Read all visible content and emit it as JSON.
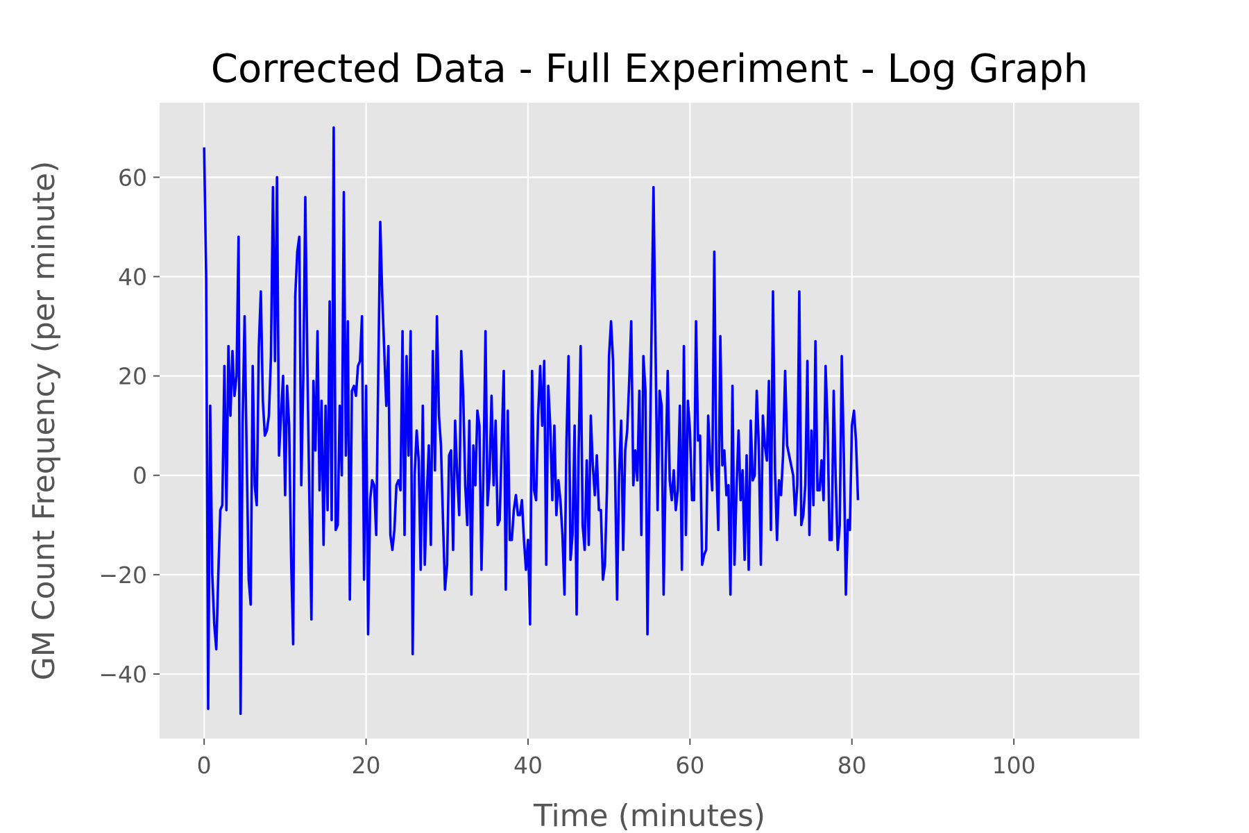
{
  "chart_data": {
    "type": "line",
    "title": "Corrected Data - Full Experiment - Log Graph",
    "xlabel": "Time (minutes)",
    "ylabel": "GM Count Frequency (per minute)",
    "xlim": [
      -5.5,
      115.5
    ],
    "ylim": [
      -53,
      75
    ],
    "xticks": [
      0,
      20,
      40,
      60,
      80,
      100
    ],
    "yticks": [
      -40,
      -20,
      0,
      20,
      40,
      60
    ],
    "xtick_labels": [
      "0",
      "20",
      "40",
      "60",
      "80",
      "100"
    ],
    "ytick_labels": [
      "−40",
      "−20",
      "0",
      "20",
      "40",
      "60"
    ],
    "grid": true,
    "background_color": "#e5e5e5",
    "grid_color": "#ffffff",
    "series": [
      {
        "color": "#0000ff",
        "x_start": 0,
        "x_step": 0.25,
        "values": [
          66,
          40,
          -47,
          14,
          -20,
          -30,
          -35,
          -20,
          -7,
          -6,
          22,
          -7,
          26,
          12,
          25,
          16,
          20,
          48,
          -48,
          10,
          32,
          5,
          -21,
          -26,
          22,
          -2,
          -6,
          26,
          37,
          15,
          8,
          9,
          12,
          24,
          58,
          23,
          60,
          4,
          12,
          20,
          -4,
          18,
          10,
          -17,
          -34,
          36,
          45,
          48,
          -2,
          20,
          56,
          22,
          -5,
          -29,
          19,
          5,
          29,
          -3,
          15,
          -14,
          14,
          -7,
          35,
          -9,
          70,
          -11,
          -10,
          14,
          0,
          57,
          4,
          31,
          -25,
          17,
          18,
          16,
          22,
          23,
          32,
          -21,
          18,
          -32,
          -5,
          -1,
          -2,
          -12,
          20,
          51,
          36,
          25,
          14,
          26,
          -12,
          -15,
          -11,
          -2,
          -1,
          -3,
          29,
          -12,
          24,
          4,
          29,
          -36,
          0,
          9,
          3,
          -19,
          14,
          -18,
          -4,
          6,
          -14,
          25,
          1,
          32,
          12,
          6,
          -9,
          -23,
          -18,
          4,
          5,
          -15,
          11,
          0,
          -8,
          25,
          16,
          -2,
          -10,
          11,
          -24,
          6,
          -2,
          13,
          10,
          -19,
          1,
          29,
          -6,
          0,
          16,
          -2,
          11,
          -10,
          -9,
          6,
          21,
          -23,
          13,
          -13,
          -13,
          -7,
          -4,
          -8,
          -8,
          -5,
          -13,
          -19,
          -13,
          -30,
          21,
          -3,
          -5,
          12,
          22,
          10,
          23,
          -18,
          18,
          10,
          -5,
          10,
          -8,
          -1,
          -5,
          -12,
          -24,
          7,
          24,
          -17,
          -12,
          10,
          -28,
          5,
          26,
          -10,
          -15,
          3,
          -14,
          12,
          2,
          -4,
          4,
          -7,
          -7,
          -21,
          -18,
          -3,
          24,
          31,
          23,
          1,
          -25,
          0,
          11,
          -15,
          5,
          9,
          19,
          31,
          -2,
          5,
          -1,
          17,
          -12,
          24,
          17,
          -32,
          -2,
          28,
          58,
          25,
          -7,
          17,
          14,
          -24,
          2,
          21,
          -1,
          -5,
          1,
          -7,
          -3,
          14,
          -19,
          26,
          -12,
          15,
          9,
          -5,
          -5,
          31,
          7,
          8,
          -18,
          -16,
          -15,
          12,
          3,
          -3,
          45,
          2,
          -11,
          28,
          2,
          5,
          -4,
          -2,
          -24,
          18,
          -18,
          -3,
          9,
          -5,
          1,
          -17,
          4,
          -19,
          11,
          -1,
          0,
          17,
          6,
          -18,
          12,
          6,
          3,
          19,
          -11,
          37,
          1,
          -13,
          -1,
          -4,
          4,
          21,
          6,
          4,
          2,
          0,
          -8,
          -2,
          37,
          -10,
          -8,
          -2,
          23,
          -12,
          9,
          -6,
          27,
          -3,
          -3,
          3,
          -5,
          22,
          10,
          -13,
          -13,
          17,
          -1,
          -15,
          -10,
          24,
          4,
          -24,
          -9,
          -11,
          10,
          13,
          7,
          -5
        ]
      }
    ]
  }
}
